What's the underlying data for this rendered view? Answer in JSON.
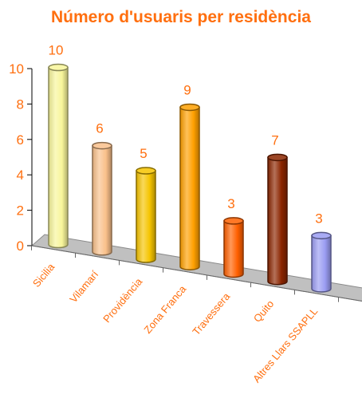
{
  "chart_data": {
    "type": "bar",
    "title": "Número d'usuaris per residència",
    "xlabel": "",
    "ylabel": "",
    "ylim": [
      0,
      10
    ],
    "yticks": [
      0,
      2,
      4,
      6,
      8,
      10
    ],
    "grid": false,
    "legend": "none",
    "three_d": true,
    "categories": [
      "Sicilia",
      "Vilamarí",
      "Providència",
      "Zona Franca",
      "Travessera",
      "Quito",
      "Altres Llars SSAPLL"
    ],
    "values": [
      10,
      6,
      5,
      9,
      3,
      7,
      3
    ],
    "colors": [
      "#f8f59a",
      "#f9c08a",
      "#f5c400",
      "#ffa000",
      "#ff6000",
      "#8b2500",
      "#9a9cf2"
    ],
    "text_color": "#ff6f0f",
    "floor_color": "#c0c0c0"
  }
}
